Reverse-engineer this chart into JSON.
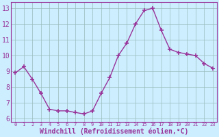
{
  "x": [
    0,
    1,
    2,
    3,
    4,
    5,
    6,
    7,
    8,
    9,
    10,
    11,
    12,
    13,
    14,
    15,
    16,
    17,
    18,
    19,
    20,
    21,
    22,
    23
  ],
  "y": [
    8.9,
    9.3,
    8.5,
    7.6,
    6.6,
    6.5,
    6.5,
    6.4,
    6.3,
    6.5,
    7.6,
    8.6,
    10.0,
    10.8,
    12.0,
    12.85,
    13.0,
    11.6,
    10.4,
    10.2,
    10.1,
    10.0,
    9.5,
    9.2
  ],
  "line_color": "#993399",
  "marker": "+",
  "marker_size": 5,
  "marker_lw": 1.2,
  "bg_color": "#cceeff",
  "grid_color": "#99bbbb",
  "xlabel": "Windchill (Refroidissement éolien,°C)",
  "xlabel_color": "#993399",
  "tick_color": "#993399",
  "spine_color": "#993399",
  "ylim": [
    5.8,
    13.4
  ],
  "xlim": [
    -0.5,
    23.5
  ],
  "yticks": [
    6,
    7,
    8,
    9,
    10,
    11,
    12,
    13
  ],
  "xticks": [
    0,
    1,
    2,
    3,
    4,
    5,
    6,
    7,
    8,
    9,
    10,
    11,
    12,
    13,
    14,
    15,
    16,
    17,
    18,
    19,
    20,
    21,
    22,
    23
  ],
  "ytick_fontsize": 7,
  "xtick_fontsize": 5,
  "xlabel_fontsize": 7
}
